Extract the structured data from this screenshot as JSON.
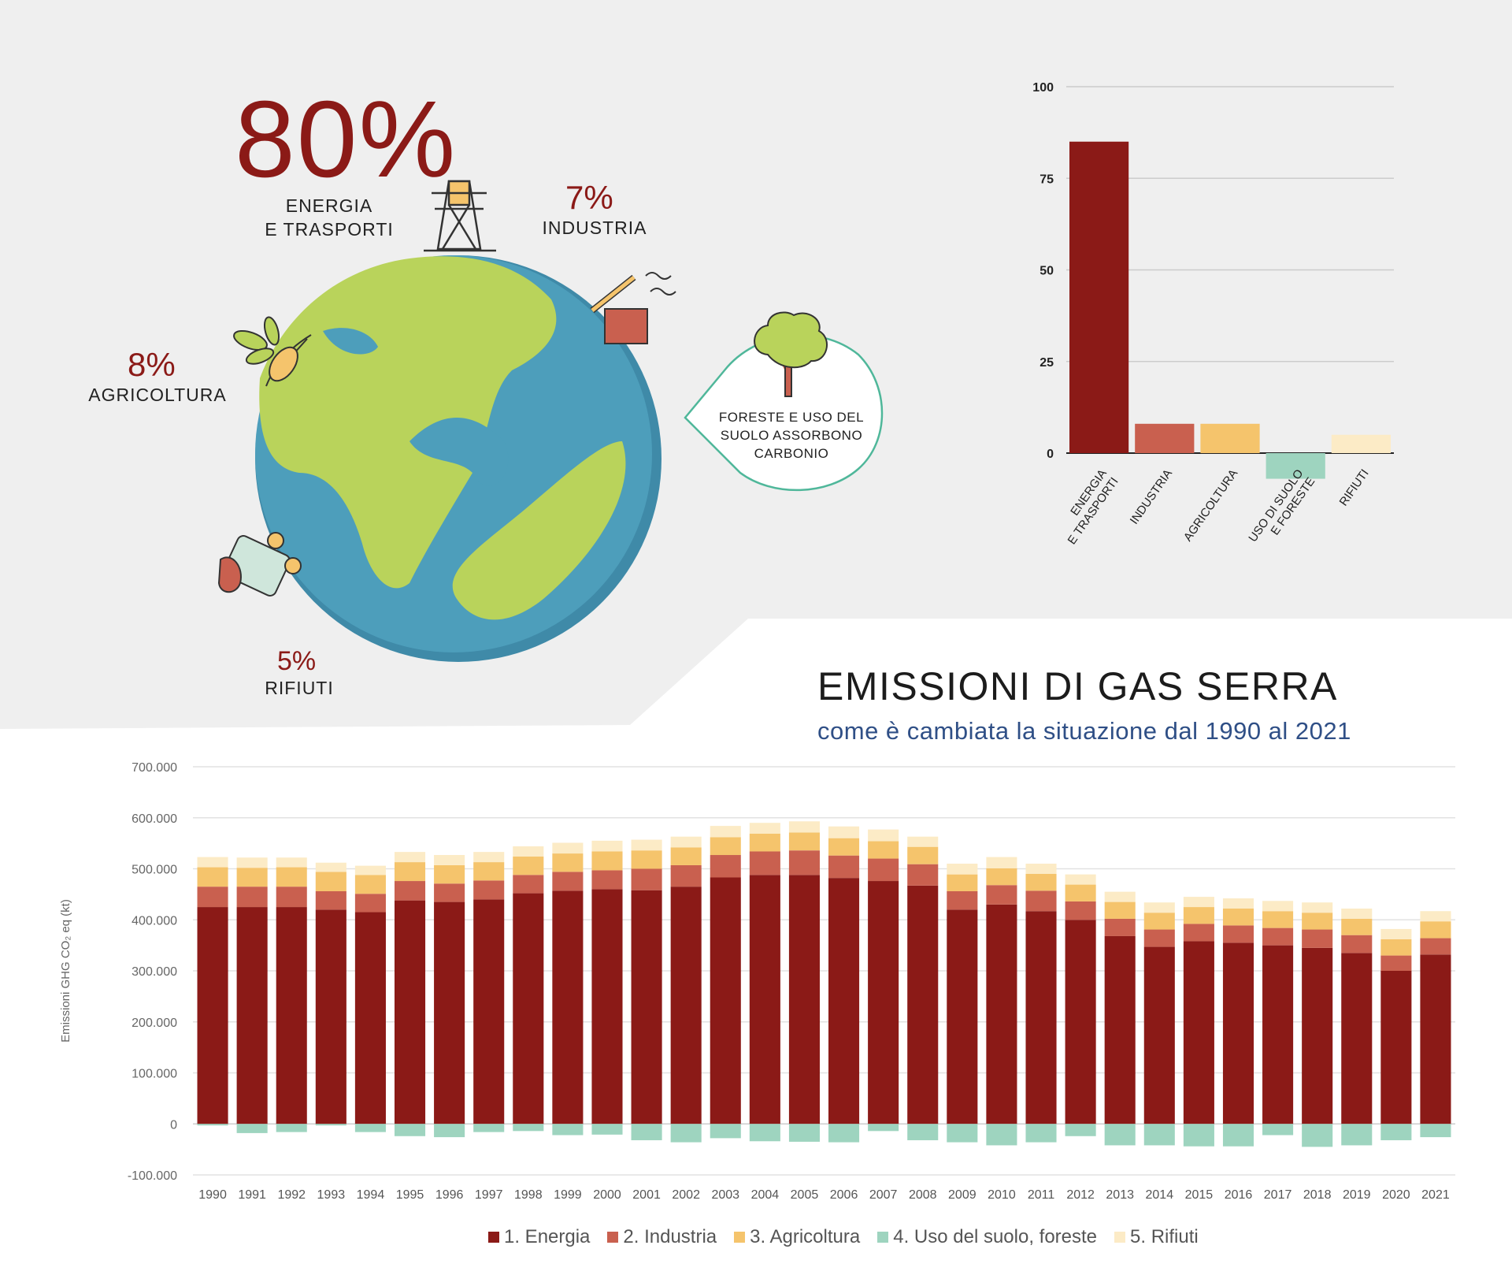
{
  "hero": {
    "energy_pct": "80%",
    "energy_label": "ENERGIA\nE TRASPORTI",
    "industry_pct": "7%",
    "industry_label": "INDUSTRIA",
    "agri_pct": "8%",
    "agri_label": "AGRICOLTURA",
    "waste_pct": "5%",
    "waste_label": "RIFIUTI",
    "forest_note": "FORESTE E USO DEL\nSUOLO ASSORBONO\nCARBONIO"
  },
  "title": "EMISSIONI DI GAS SERRA",
  "subtitle": "come è cambiata la situazione dal 1990 al 2021",
  "colors": {
    "energia": "#8b1a17",
    "industria": "#c9604f",
    "agricoltura": "#f5c46c",
    "suolo": "#9ed4bf",
    "rifiuti": "#fcebc6",
    "background": "#efefef"
  },
  "chart_data": [
    {
      "type": "bar",
      "categories": [
        "ENERGIA\nE TRASPORTI",
        "INDUSTRIA",
        "AGRICOLTURA",
        "USO DI SUOLO\nE FORESTE",
        "RIFIUTI"
      ],
      "values": [
        85,
        8,
        8,
        -7,
        5
      ],
      "ylim": [
        -10,
        100
      ],
      "yticks": [
        "100",
        "75",
        "50",
        "25",
        "0"
      ],
      "grid": true
    },
    {
      "type": "bar",
      "stacked": true,
      "ylabel": "Emissioni GHG CO₂ eq (kt)",
      "ylim": [
        -100000,
        700000
      ],
      "yticks": [
        "700.000",
        "600.000",
        "500.000",
        "400.000",
        "300.000",
        "200.000",
        "100.000",
        "0",
        "-100.000"
      ],
      "categories": [
        "1990",
        "1991",
        "1992",
        "1993",
        "1994",
        "1995",
        "1996",
        "1997",
        "1998",
        "1999",
        "2000",
        "2001",
        "2002",
        "2003",
        "2004",
        "2005",
        "2006",
        "2007",
        "2008",
        "2009",
        "2010",
        "2011",
        "2012",
        "2013",
        "2014",
        "2015",
        "2016",
        "2017",
        "2018",
        "2019",
        "2020",
        "2021"
      ],
      "series": [
        {
          "name": "1. Energia",
          "values": [
            425000,
            425000,
            425000,
            420000,
            415000,
            438000,
            435000,
            440000,
            452000,
            457000,
            460000,
            458000,
            465000,
            483000,
            488000,
            488000,
            482000,
            476000,
            467000,
            420000,
            430000,
            417000,
            400000,
            368000,
            347000,
            358000,
            355000,
            350000,
            345000,
            335000,
            300000,
            332000
          ]
        },
        {
          "name": "2. Industria",
          "values": [
            40000,
            40000,
            40000,
            36000,
            36000,
            38000,
            36000,
            37000,
            36000,
            37000,
            37000,
            42000,
            42000,
            44000,
            46000,
            48000,
            44000,
            44000,
            42000,
            36000,
            38000,
            40000,
            36000,
            34000,
            34000,
            34000,
            34000,
            34000,
            36000,
            35000,
            30000,
            32000
          ]
        },
        {
          "name": "3. Agricoltura",
          "values": [
            38000,
            37000,
            38000,
            38000,
            37000,
            37000,
            36000,
            36000,
            36000,
            36000,
            37000,
            36000,
            35000,
            35000,
            35000,
            35000,
            34000,
            34000,
            34000,
            33000,
            33000,
            33000,
            33000,
            33000,
            33000,
            33000,
            33000,
            33000,
            33000,
            32000,
            32000,
            33000
          ]
        },
        {
          "name": "4. Uso del suolo, foreste",
          "values": [
            -3000,
            -18000,
            -16000,
            -3000,
            -16000,
            -24000,
            -26000,
            -16000,
            -14000,
            -22000,
            -21000,
            -32000,
            -36000,
            -28000,
            -34000,
            -35000,
            -36000,
            -14000,
            -32000,
            -36000,
            -42000,
            -36000,
            -24000,
            -42000,
            -42000,
            -44000,
            -44000,
            -22000,
            -45000,
            -42000,
            -32000,
            -26000
          ]
        },
        {
          "name": "5. Rifiuti",
          "values": [
            20000,
            20000,
            19000,
            18000,
            18000,
            20000,
            20000,
            20000,
            20000,
            21000,
            21000,
            21000,
            21000,
            22000,
            21000,
            22000,
            23000,
            23000,
            20000,
            21000,
            22000,
            20000,
            20000,
            20000,
            20000,
            20000,
            20000,
            20000,
            20000,
            20000,
            20000,
            20000
          ]
        }
      ],
      "legend": "bottom"
    }
  ]
}
